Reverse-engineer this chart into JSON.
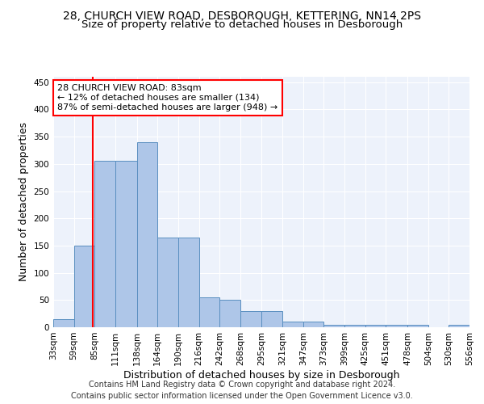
{
  "title_line1": "28, CHURCH VIEW ROAD, DESBOROUGH, KETTERING, NN14 2PS",
  "title_line2": "Size of property relative to detached houses in Desborough",
  "xlabel": "Distribution of detached houses by size in Desborough",
  "ylabel": "Number of detached properties",
  "footer_line1": "Contains HM Land Registry data © Crown copyright and database right 2024.",
  "footer_line2": "Contains public sector information licensed under the Open Government Licence v3.0.",
  "annotation_line1": "28 CHURCH VIEW ROAD: 83sqm",
  "annotation_line2": "← 12% of detached houses are smaller (134)",
  "annotation_line3": "87% of semi-detached houses are larger (948) →",
  "property_size": 83,
  "bin_edges": [
    33,
    59,
    85,
    111,
    138,
    164,
    190,
    216,
    242,
    268,
    295,
    321,
    347,
    373,
    399,
    425,
    451,
    478,
    504,
    530,
    556
  ],
  "bar_heights": [
    15,
    150,
    305,
    305,
    340,
    165,
    165,
    55,
    50,
    30,
    30,
    10,
    10,
    5,
    5,
    5,
    5,
    5,
    0,
    5
  ],
  "bar_color": "#aec6e8",
  "bar_edge_color": "#5a8fc0",
  "vline_color": "red",
  "vline_x": 83,
  "ylim": [
    0,
    460
  ],
  "yticks": [
    0,
    50,
    100,
    150,
    200,
    250,
    300,
    350,
    400,
    450
  ],
  "annotation_box_color": "red",
  "bg_color": "#edf2fb",
  "grid_color": "#ffffff",
  "title_fontsize": 10,
  "subtitle_fontsize": 9.5,
  "tick_label_fontsize": 7.5,
  "axis_label_fontsize": 9,
  "annotation_fontsize": 8,
  "footer_fontsize": 7
}
